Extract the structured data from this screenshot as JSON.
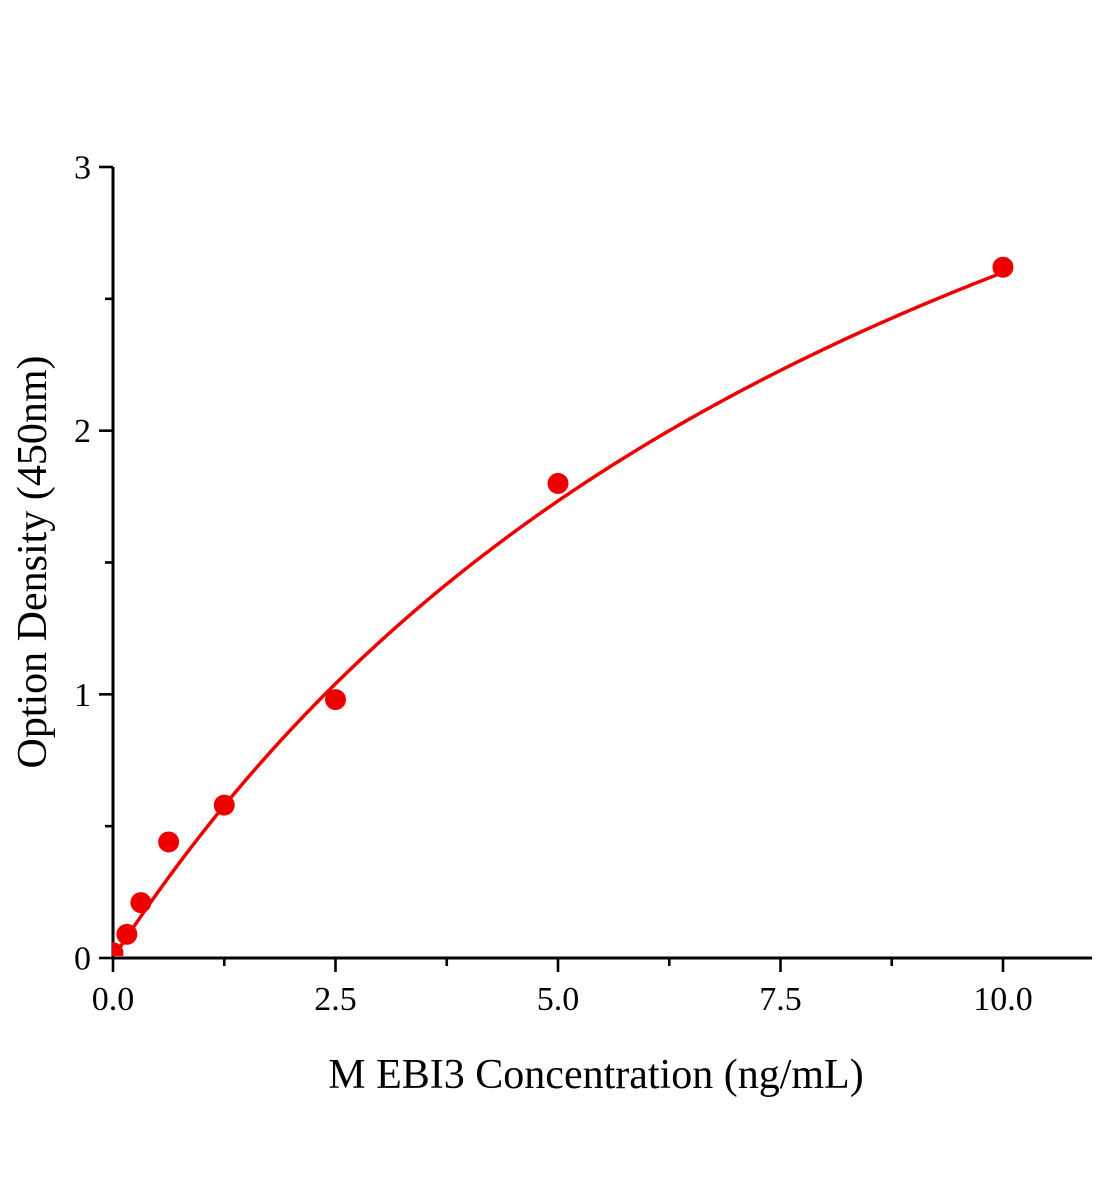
{
  "chart_data": {
    "type": "scatter",
    "title": "",
    "xlabel": "M EBI3 Concentration (ng/mL)",
    "ylabel": "Option Density (450nm)",
    "x": [
      0,
      0.156,
      0.313,
      0.625,
      1.25,
      2.5,
      5.0,
      10.0
    ],
    "y": [
      0.02,
      0.09,
      0.21,
      0.44,
      0.58,
      0.98,
      1.8,
      2.62
    ],
    "xlim": [
      0,
      11
    ],
    "ylim": [
      0,
      3
    ],
    "x_ticks": {
      "major": [
        0,
        2.5,
        5.0,
        7.5,
        10.0
      ],
      "labels": [
        "0.0",
        "2.5",
        "5.0",
        "7.5",
        "10.0"
      ],
      "minor": [
        1.25,
        3.75,
        6.25,
        8.75
      ]
    },
    "y_ticks": {
      "major": [
        0,
        1,
        2,
        3
      ],
      "labels": [
        "0",
        "1",
        "2",
        "3"
      ],
      "minor": [
        0.5,
        1.5,
        2.5
      ]
    },
    "grid": "off",
    "legend": "none",
    "marker_color": "#ee0000",
    "line_color": "#ee0000",
    "axis_color": "#000000",
    "fit": {
      "model": "y = vmax * x / (km + x)",
      "vmax": 5.2,
      "km": 10,
      "x_start": 0,
      "x_end": 10
    }
  }
}
